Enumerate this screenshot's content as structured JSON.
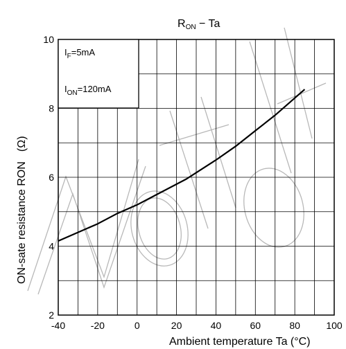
{
  "chart_data": {
    "type": "line",
    "title_main": "R",
    "title_sub": "ON",
    "title_rest": " − Ta",
    "xlabel": "Ambient temperature   Ta   (°C)",
    "ylabel_text": "ON-sate resistance   R",
    "ylabel_sub": "ON",
    "ylabel_unit": "(Ω)",
    "xlim": [
      -40,
      100
    ],
    "ylim": [
      2,
      10
    ],
    "x_ticks": [
      -40,
      -20,
      0,
      20,
      40,
      60,
      80,
      100
    ],
    "y_ticks": [
      2,
      4,
      6,
      8,
      10
    ],
    "x_minor_step": 10,
    "y_minor_step": 1,
    "grid": true,
    "legend": {
      "position": "top-left",
      "lines": [
        {
          "main": "I",
          "sub": "F",
          "rest": "=5mA"
        },
        {
          "main": "I",
          "sub": "ON",
          "rest": "=120mA"
        }
      ]
    },
    "series": [
      {
        "x": [
          -40,
          -30,
          -20,
          -10,
          0,
          10,
          25,
          40,
          50,
          60,
          70,
          85
        ],
        "y": [
          4.15,
          4.4,
          4.65,
          4.95,
          5.2,
          5.5,
          5.95,
          6.5,
          6.9,
          7.35,
          7.8,
          8.55
        ]
      }
    ]
  }
}
